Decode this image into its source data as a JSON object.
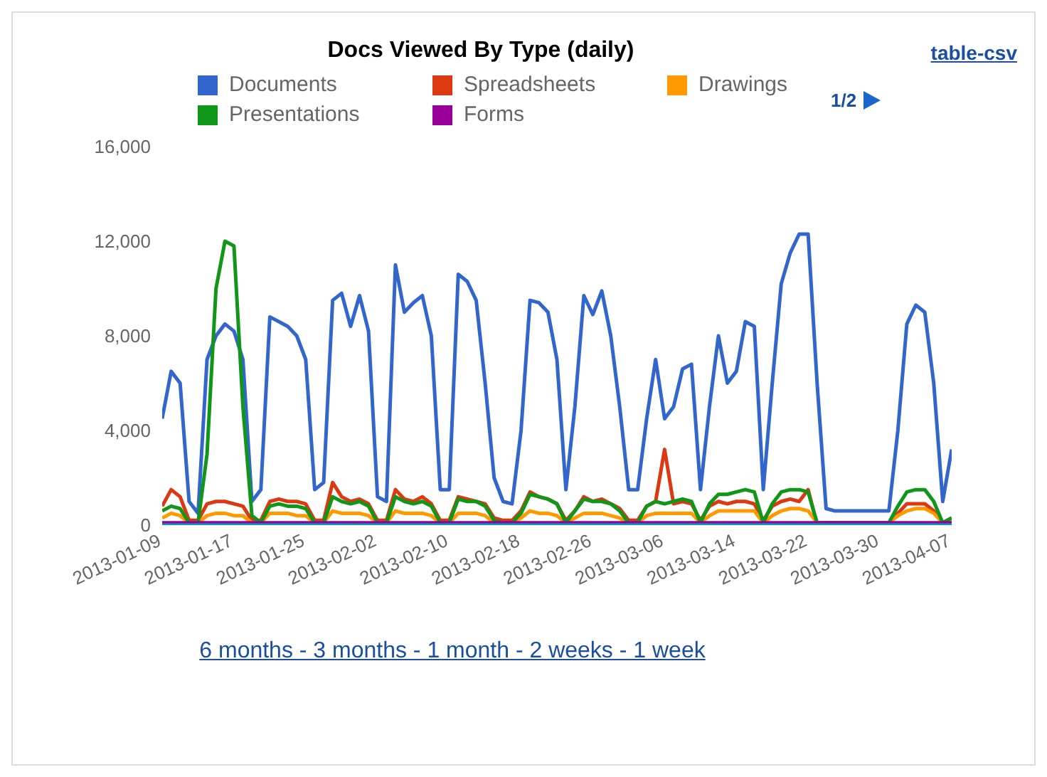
{
  "chart_data": {
    "type": "line",
    "title": "Docs Viewed By Type (daily)",
    "annotations": [
      "table-csv",
      "1/2",
      "6 months - 3 months - 1 month - 2 weeks - 1 week"
    ],
    "x": [
      "2013-01-09",
      "2013-01-10",
      "2013-01-11",
      "2013-01-12",
      "2013-01-13",
      "2013-01-14",
      "2013-01-15",
      "2013-01-16",
      "2013-01-17",
      "2013-01-18",
      "2013-01-19",
      "2013-01-20",
      "2013-01-21",
      "2013-01-22",
      "2013-01-23",
      "2013-01-24",
      "2013-01-25",
      "2013-01-26",
      "2013-01-27",
      "2013-01-28",
      "2013-01-29",
      "2013-01-30",
      "2013-01-31",
      "2013-02-01",
      "2013-02-02",
      "2013-02-03",
      "2013-02-04",
      "2013-02-05",
      "2013-02-06",
      "2013-02-07",
      "2013-02-08",
      "2013-02-09",
      "2013-02-10",
      "2013-02-11",
      "2013-02-12",
      "2013-02-13",
      "2013-02-14",
      "2013-02-15",
      "2013-02-16",
      "2013-02-17",
      "2013-02-18",
      "2013-02-19",
      "2013-02-20",
      "2013-02-21",
      "2013-02-22",
      "2013-02-23",
      "2013-02-24",
      "2013-02-25",
      "2013-02-26",
      "2013-02-27",
      "2013-02-28",
      "2013-03-01",
      "2013-03-02",
      "2013-03-03",
      "2013-03-04",
      "2013-03-05",
      "2013-03-06",
      "2013-03-07",
      "2013-03-08",
      "2013-03-09",
      "2013-03-10",
      "2013-03-11",
      "2013-03-12",
      "2013-03-13",
      "2013-03-14",
      "2013-03-15",
      "2013-03-16",
      "2013-03-17",
      "2013-03-18",
      "2013-03-19",
      "2013-03-20",
      "2013-03-21",
      "2013-03-22",
      "2013-03-23",
      "2013-03-24",
      "2013-03-25",
      "2013-03-26",
      "2013-03-27",
      "2013-03-28",
      "2013-03-29",
      "2013-03-30",
      "2013-03-31",
      "2013-04-01",
      "2013-04-02",
      "2013-04-03",
      "2013-04-04",
      "2013-04-05",
      "2013-04-06",
      "2013-04-07"
    ],
    "series": [
      {
        "name": "Documents",
        "color": "#3366cc",
        "values": [
          4500,
          6500,
          6000,
          1000,
          500,
          7000,
          8000,
          8500,
          8200,
          7000,
          1000,
          1500,
          8800,
          8600,
          8400,
          8000,
          7000,
          1500,
          1800,
          9500,
          9800,
          8400,
          9700,
          8200,
          1200,
          1000,
          11000,
          9000,
          9400,
          9700,
          8000,
          1500,
          1500,
          10600,
          10300,
          9500,
          6000,
          2000,
          1000,
          900,
          4000,
          9500,
          9400,
          9000,
          7000,
          1500,
          5000,
          9700,
          8900,
          9900,
          8000,
          5000,
          1500,
          1500,
          4500,
          7000,
          4500,
          5000,
          6600,
          6800,
          1500,
          5000,
          8000,
          6000,
          6500,
          8600,
          8400,
          1500,
          6000,
          10200,
          11500,
          12300,
          12300,
          6000,
          700,
          600,
          600,
          600,
          600,
          600,
          600,
          600,
          4000,
          8500,
          9300,
          9000,
          6000,
          1000,
          3200
        ]
      },
      {
        "name": "Spreadsheets",
        "color": "#dc3912",
        "values": [
          800,
          1500,
          1200,
          200,
          200,
          900,
          1000,
          1000,
          900,
          800,
          200,
          200,
          1000,
          1100,
          1000,
          1000,
          900,
          200,
          200,
          1800,
          1200,
          1000,
          1100,
          900,
          200,
          200,
          1500,
          1100,
          1000,
          1200,
          900,
          200,
          200,
          1200,
          1100,
          1000,
          900,
          300,
          200,
          200,
          600,
          1400,
          1200,
          1100,
          900,
          200,
          600,
          1200,
          1000,
          1100,
          900,
          700,
          200,
          200,
          800,
          1000,
          3200,
          900,
          1000,
          900,
          200,
          800,
          1000,
          900,
          1000,
          1000,
          900,
          200,
          800,
          1000,
          1100,
          1000,
          1500,
          0,
          100,
          100,
          100,
          100,
          100,
          100,
          100,
          100,
          500,
          900,
          900,
          900,
          600,
          100,
          300
        ]
      },
      {
        "name": "Drawings",
        "color": "#ff9900",
        "values": [
          300,
          500,
          400,
          100,
          100,
          400,
          500,
          500,
          400,
          400,
          100,
          100,
          500,
          500,
          500,
          400,
          400,
          100,
          100,
          600,
          500,
          500,
          500,
          400,
          100,
          100,
          600,
          500,
          500,
          500,
          400,
          100,
          100,
          500,
          500,
          500,
          400,
          100,
          100,
          100,
          300,
          600,
          500,
          500,
          400,
          100,
          300,
          500,
          500,
          500,
          400,
          300,
          100,
          100,
          400,
          500,
          500,
          500,
          500,
          500,
          100,
          400,
          600,
          600,
          600,
          600,
          600,
          100,
          400,
          600,
          700,
          700,
          600,
          100,
          100,
          100,
          100,
          100,
          100,
          100,
          100,
          100,
          400,
          600,
          700,
          700,
          500,
          100,
          200
        ]
      },
      {
        "name": "Presentations",
        "color": "#109618",
        "values": [
          600,
          800,
          700,
          100,
          100,
          3000,
          10000,
          12000,
          11800,
          5000,
          400,
          100,
          800,
          900,
          800,
          800,
          700,
          100,
          100,
          1200,
          1000,
          900,
          1000,
          800,
          100,
          100,
          1200,
          1000,
          900,
          1000,
          800,
          100,
          100,
          1100,
          1000,
          1000,
          800,
          200,
          100,
          100,
          500,
          1300,
          1200,
          1100,
          900,
          100,
          600,
          1100,
          1000,
          1000,
          900,
          600,
          100,
          100,
          800,
          1000,
          900,
          1000,
          1100,
          1000,
          100,
          900,
          1300,
          1300,
          1400,
          1500,
          1400,
          100,
          900,
          1400,
          1500,
          1500,
          1400,
          100,
          100,
          100,
          100,
          100,
          100,
          100,
          100,
          100,
          800,
          1400,
          1500,
          1500,
          1000,
          100,
          300
        ]
      },
      {
        "name": "Forms",
        "color": "#990099",
        "values": [
          100,
          100,
          100,
          100,
          100,
          100,
          100,
          100,
          100,
          100,
          100,
          100,
          100,
          100,
          100,
          100,
          100,
          100,
          100,
          100,
          100,
          100,
          100,
          100,
          100,
          100,
          100,
          100,
          100,
          100,
          100,
          100,
          100,
          100,
          100,
          100,
          100,
          100,
          100,
          100,
          100,
          100,
          100,
          100,
          100,
          100,
          100,
          100,
          100,
          100,
          100,
          100,
          100,
          100,
          100,
          100,
          100,
          100,
          100,
          100,
          100,
          100,
          100,
          100,
          100,
          100,
          100,
          100,
          100,
          100,
          100,
          100,
          100,
          100,
          100,
          100,
          100,
          100,
          100,
          100,
          100,
          100,
          100,
          100,
          100,
          100,
          100,
          100,
          100
        ]
      },
      {
        "color": "#0099c6",
        "values": [
          0,
          0,
          0,
          0,
          0,
          0,
          0,
          0,
          0,
          0,
          0,
          0,
          0,
          0,
          0,
          0,
          0,
          0,
          0,
          0,
          0,
          0,
          0,
          0,
          0,
          0,
          0,
          0,
          0,
          0,
          0,
          0,
          0,
          0,
          0,
          0,
          0,
          0,
          0,
          0,
          0,
          0,
          0,
          0,
          0,
          0,
          0,
          0,
          0,
          0,
          0,
          0,
          0,
          0,
          0,
          0,
          0,
          0,
          0,
          0,
          0,
          0,
          0,
          0,
          0,
          0,
          0,
          0,
          0,
          0,
          0,
          0,
          0,
          0,
          0,
          0,
          0,
          0,
          0,
          0,
          0,
          0,
          0,
          0,
          0,
          0,
          0,
          0,
          0
        ]
      }
    ],
    "xlim": [
      "2013-01-09",
      "2013-04-07"
    ],
    "xticks": [
      "2013-01-09",
      "2013-01-17",
      "2013-01-25",
      "2013-02-02",
      "2013-02-10",
      "2013-02-18",
      "2013-02-26",
      "2013-03-06",
      "2013-03-14",
      "2013-03-22",
      "2013-03-30",
      "2013-04-07"
    ],
    "ylim": [
      0,
      16000
    ],
    "yticks": [
      {
        "value": 0,
        "label": "0"
      },
      {
        "value": 4000,
        "label": "4,000"
      },
      {
        "value": 8000,
        "label": "8,000"
      },
      {
        "value": 12000,
        "label": "12,000"
      },
      {
        "value": 16000,
        "label": "16,000"
      }
    ],
    "legend": "top"
  }
}
